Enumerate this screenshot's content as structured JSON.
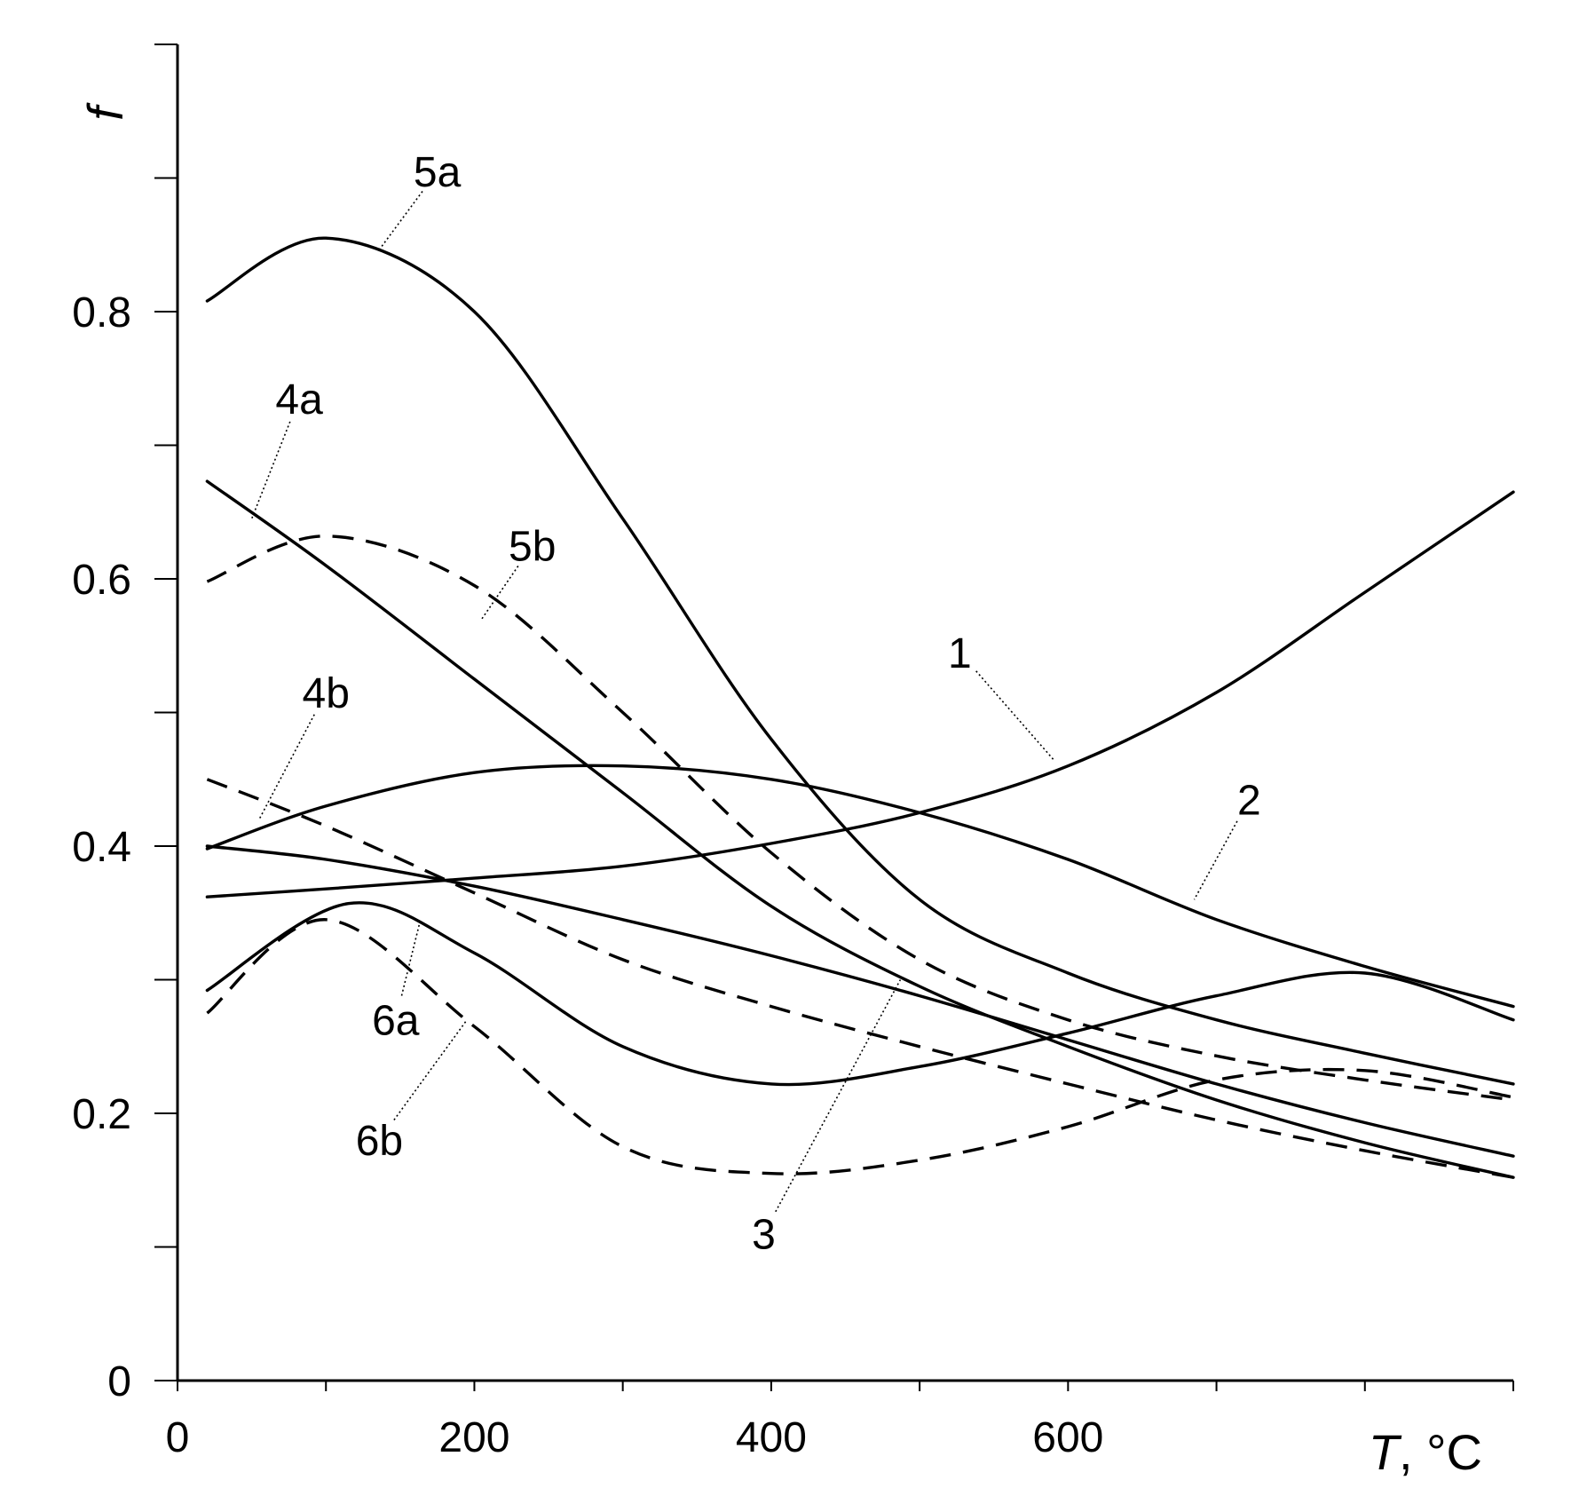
{
  "chart_data": {
    "type": "line",
    "title": "",
    "xlabel": "T",
    "xlabel_unit": ", °C",
    "ylabel": "f",
    "xlim": [
      0,
      900
    ],
    "ylim": [
      0,
      1.0
    ],
    "x_ticks": [
      0,
      200,
      400,
      600
    ],
    "x_tick_labels": [
      "0",
      "200",
      "400",
      "600"
    ],
    "x_minor_ticks": [
      100,
      300,
      500,
      700,
      800,
      900
    ],
    "y_ticks": [
      0,
      0.2,
      0.4,
      0.6,
      0.8
    ],
    "y_tick_labels": [
      "0",
      "0.2",
      "0.4",
      "0.6",
      "0.8"
    ],
    "y_minor_ticks": [
      0.1,
      0.3,
      0.5,
      0.7,
      0.9
    ],
    "grid": false,
    "line_color": "#000000",
    "series": [
      {
        "name": "1",
        "style": "solid",
        "x": [
          20,
          100,
          200,
          300,
          400,
          500,
          600,
          700,
          800,
          900
        ],
        "y": [
          0.362,
          0.368,
          0.376,
          0.385,
          0.402,
          0.425,
          0.46,
          0.515,
          0.59,
          0.665
        ]
      },
      {
        "name": "2",
        "style": "solid",
        "x": [
          20,
          100,
          200,
          300,
          400,
          500,
          600,
          700,
          800,
          900
        ],
        "y": [
          0.398,
          0.43,
          0.455,
          0.46,
          0.45,
          0.425,
          0.39,
          0.345,
          0.31,
          0.28
        ]
      },
      {
        "name": "3",
        "style": "solid",
        "x": [
          20,
          100,
          200,
          300,
          400,
          500,
          600,
          700,
          800,
          900
        ],
        "y": [
          0.4,
          0.39,
          0.37,
          0.345,
          0.318,
          0.288,
          0.255,
          0.222,
          0.193,
          0.168
        ]
      },
      {
        "name": "4a",
        "style": "solid",
        "x": [
          20,
          100,
          200,
          300,
          400,
          500,
          600,
          700,
          800,
          900
        ],
        "y": [
          0.673,
          0.61,
          0.525,
          0.44,
          0.355,
          0.295,
          0.25,
          0.21,
          0.178,
          0.152
        ]
      },
      {
        "name": "4b",
        "style": "dashed",
        "x": [
          20,
          100,
          200,
          300,
          400,
          500,
          600,
          700,
          800,
          900
        ],
        "y": [
          0.45,
          0.415,
          0.365,
          0.315,
          0.28,
          0.25,
          0.222,
          0.195,
          0.172,
          0.152
        ]
      },
      {
        "name": "5a",
        "style": "solid",
        "x": [
          20,
          100,
          200,
          300,
          400,
          500,
          600,
          700,
          800,
          900
        ],
        "y": [
          0.808,
          0.855,
          0.8,
          0.645,
          0.48,
          0.36,
          0.305,
          0.27,
          0.245,
          0.222
        ]
      },
      {
        "name": "5b",
        "style": "dashed",
        "x": [
          20,
          100,
          200,
          300,
          400,
          500,
          600,
          700,
          800,
          900
        ],
        "y": [
          0.598,
          0.632,
          0.595,
          0.5,
          0.395,
          0.315,
          0.27,
          0.243,
          0.225,
          0.21
        ]
      },
      {
        "name": "6a",
        "style": "solid",
        "x": [
          20,
          115,
          200,
          300,
          400,
          500,
          600,
          700,
          800,
          900
        ],
        "y": [
          0.292,
          0.357,
          0.32,
          0.25,
          0.222,
          0.235,
          0.26,
          0.288,
          0.305,
          0.27
        ]
      },
      {
        "name": "6b",
        "style": "dashed",
        "x": [
          20,
          100,
          200,
          300,
          400,
          500,
          600,
          700,
          800,
          900
        ],
        "y": [
          0.275,
          0.345,
          0.265,
          0.175,
          0.155,
          0.165,
          0.19,
          0.225,
          0.232,
          0.212
        ]
      }
    ],
    "annotations": [
      {
        "label": "1",
        "curve": "1",
        "label_at": [
          527,
          0.545
        ],
        "points_to": [
          590,
          0.465
        ]
      },
      {
        "label": "2",
        "curve": "2",
        "label_at": [
          722,
          0.435
        ],
        "points_to": [
          685,
          0.36
        ]
      },
      {
        "label": "3",
        "curve": "3",
        "label_at": [
          395,
          0.11
        ],
        "points_to": [
          487,
          0.3
        ]
      },
      {
        "label": "4a",
        "curve": "4a",
        "label_at": [
          82,
          0.735
        ],
        "points_to": [
          50,
          0.645
        ]
      },
      {
        "label": "4b",
        "curve": "4b",
        "label_at": [
          100,
          0.515
        ],
        "points_to": [
          55,
          0.42
        ]
      },
      {
        "label": "5a",
        "curve": "5a",
        "label_at": [
          175,
          0.905
        ],
        "points_to": [
          135,
          0.845
        ]
      },
      {
        "label": "5b",
        "curve": "5b",
        "label_at": [
          239,
          0.625
        ],
        "points_to": [
          205,
          0.57
        ]
      },
      {
        "label": "6a",
        "curve": "6a",
        "label_at": [
          147,
          0.27
        ],
        "points_to": [
          163,
          0.342
        ]
      },
      {
        "label": "6b",
        "curve": "6b",
        "label_at": [
          136,
          0.18
        ],
        "points_to": [
          195,
          0.27
        ]
      }
    ]
  }
}
